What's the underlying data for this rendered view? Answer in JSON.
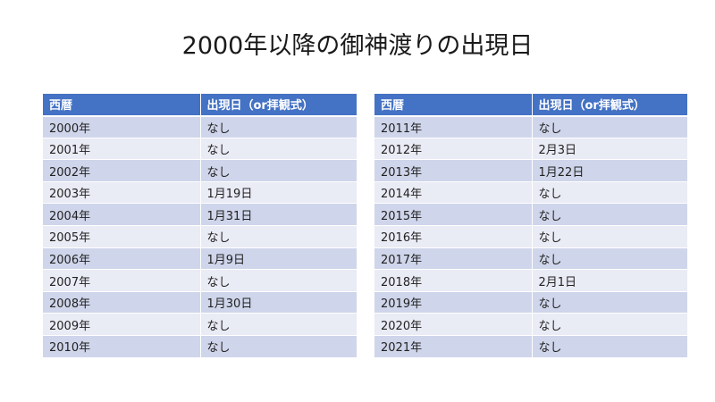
{
  "title": "2000年以降の御神渡りの出現日",
  "tables": [
    {
      "headers": [
        "西暦",
        "出現日（or拝観式）"
      ],
      "rows": [
        [
          "2000年",
          "なし"
        ],
        [
          "2001年",
          "なし"
        ],
        [
          "2002年",
          "なし"
        ],
        [
          "2003年",
          "1月19日"
        ],
        [
          "2004年",
          "1月31日"
        ],
        [
          "2005年",
          "なし"
        ],
        [
          "2006年",
          "1月9日"
        ],
        [
          "2007年",
          "なし"
        ],
        [
          "2008年",
          "1月30日"
        ],
        [
          "2009年",
          "なし"
        ],
        [
          "2010年",
          "なし"
        ]
      ]
    },
    {
      "headers": [
        "西暦",
        "出現日（or拝観式）"
      ],
      "rows": [
        [
          "2011年",
          "なし"
        ],
        [
          "2012年",
          "2月3日"
        ],
        [
          "2013年",
          "1月22日"
        ],
        [
          "2014年",
          "なし"
        ],
        [
          "2015年",
          "なし"
        ],
        [
          "2016年",
          "なし"
        ],
        [
          "2017年",
          "なし"
        ],
        [
          "2018年",
          "2月1日"
        ],
        [
          "2019年",
          "なし"
        ],
        [
          "2020年",
          "なし"
        ],
        [
          "2021年",
          "なし"
        ]
      ]
    }
  ],
  "colors": {
    "header_bg": "#4472c4",
    "row_dark": "#cfd5ea",
    "row_light": "#e9ebf5"
  }
}
